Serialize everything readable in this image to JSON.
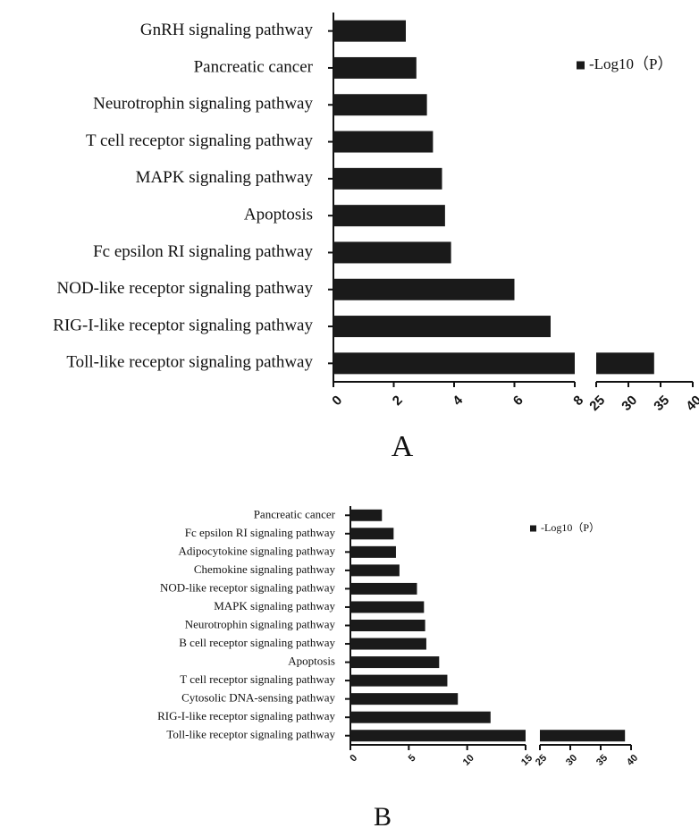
{
  "chart_data": [
    {
      "type": "bar",
      "orientation": "horizontal",
      "panel_label": "A",
      "legend": "-Log10（P）",
      "legend_position": "top-right",
      "bar_color": "#1a1a1a",
      "categories": [
        "GnRH signaling pathway",
        "Pancreatic cancer",
        "Neurotrophin signaling pathway",
        "T cell receptor signaling pathway",
        "MAPK signaling pathway",
        "Apoptosis",
        "Fc epsilon RI signaling pathway",
        "NOD-like receptor signaling pathway",
        "RIG-I-like receptor signaling pathway",
        "Toll-like receptor signaling pathway"
      ],
      "values": [
        2.4,
        2.75,
        3.1,
        3.3,
        3.6,
        3.7,
        3.9,
        6.0,
        7.2,
        34
      ],
      "axis_break": [
        8,
        25
      ],
      "xticks": [
        0,
        2,
        4,
        6,
        8,
        25,
        30,
        35,
        40
      ],
      "xlim": [
        0,
        40
      ]
    },
    {
      "type": "bar",
      "orientation": "horizontal",
      "panel_label": "B",
      "legend": "-Log10（P）",
      "legend_position": "top-right",
      "bar_color": "#1a1a1a",
      "categories": [
        "Pancreatic cancer",
        "Fc epsilon RI signaling pathway",
        "Adipocytokine signaling pathway",
        "Chemokine signaling pathway",
        "NOD-like receptor signaling pathway",
        "MAPK signaling pathway",
        "Neurotrophin signaling pathway",
        "B cell receptor signaling pathway",
        "Apoptosis",
        "T cell receptor signaling pathway",
        "Cytosolic DNA-sensing pathway",
        "RIG-I-like receptor signaling pathway",
        "Toll-like receptor signaling pathway"
      ],
      "values": [
        2.7,
        3.7,
        3.9,
        4.2,
        5.7,
        6.3,
        6.4,
        6.5,
        7.6,
        8.3,
        9.2,
        12.0,
        39
      ],
      "axis_break": [
        15,
        25
      ],
      "xticks": [
        0,
        5,
        10,
        15,
        25,
        30,
        35,
        40
      ],
      "xlim": [
        0,
        40
      ]
    }
  ]
}
